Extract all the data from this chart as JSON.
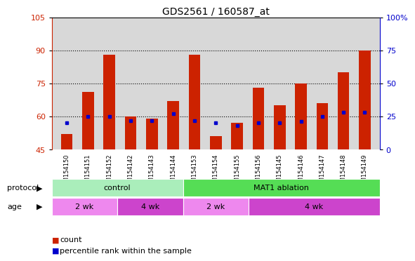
{
  "title": "GDS2561 / 160587_at",
  "samples": [
    "GSM154150",
    "GSM154151",
    "GSM154152",
    "GSM154142",
    "GSM154143",
    "GSM154144",
    "GSM154153",
    "GSM154154",
    "GSM154155",
    "GSM154156",
    "GSM154145",
    "GSM154146",
    "GSM154147",
    "GSM154148",
    "GSM154149"
  ],
  "count_values": [
    52,
    71,
    88,
    60,
    59,
    67,
    88,
    51,
    57,
    73,
    65,
    75,
    66,
    80,
    90
  ],
  "percentile_values": [
    20,
    25,
    25,
    22,
    22,
    27,
    22,
    20,
    18,
    20,
    20,
    21,
    25,
    28,
    28
  ],
  "ylim_left": [
    45,
    105
  ],
  "ylim_right": [
    0,
    100
  ],
  "yticks_left": [
    45,
    60,
    75,
    90,
    105
  ],
  "yticks_right": [
    0,
    25,
    50,
    75,
    100
  ],
  "ytick_labels_right": [
    "0",
    "25",
    "50",
    "75",
    "100%"
  ],
  "protocol_groups": [
    {
      "label": "control",
      "start": 0,
      "end": 6,
      "color": "#aaeebb"
    },
    {
      "label": "MAT1 ablation",
      "start": 6,
      "end": 15,
      "color": "#55dd55"
    }
  ],
  "age_groups": [
    {
      "label": "2 wk",
      "start": 0,
      "end": 3,
      "color": "#ee88ee"
    },
    {
      "label": "4 wk",
      "start": 3,
      "end": 6,
      "color": "#cc44cc"
    },
    {
      "label": "2 wk",
      "start": 6,
      "end": 9,
      "color": "#ee88ee"
    },
    {
      "label": "4 wk",
      "start": 9,
      "end": 15,
      "color": "#cc44cc"
    }
  ],
  "bar_color": "#cc2200",
  "dot_color": "#0000cc",
  "grid_color": "#000000",
  "axis_label_color_left": "#cc2200",
  "axis_label_color_right": "#0000cc",
  "bg_color": "#d8d8d8",
  "legend_count_color": "#cc2200",
  "legend_dot_color": "#0000cc"
}
